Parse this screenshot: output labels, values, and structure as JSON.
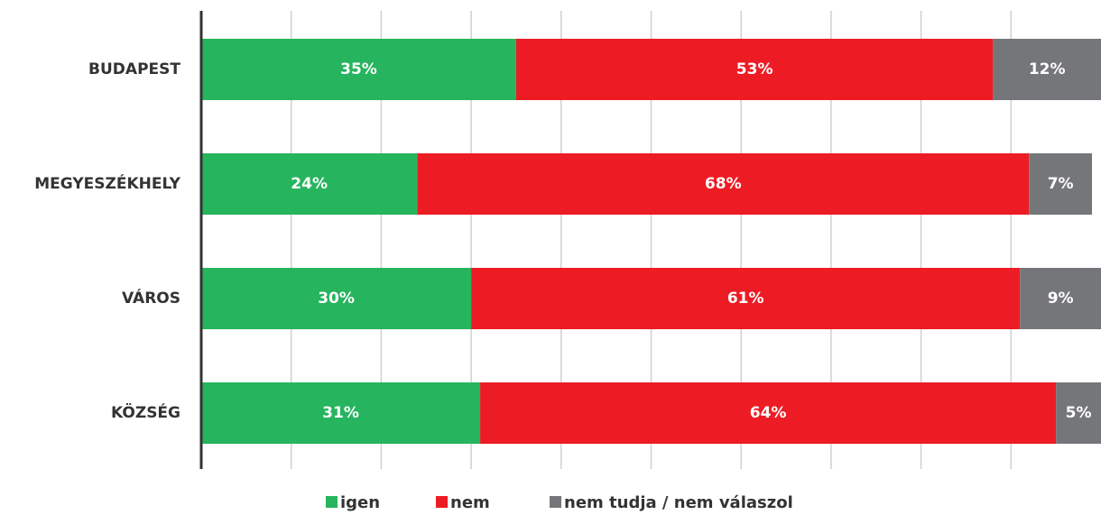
{
  "chart_data": {
    "type": "stacked-bar-horizontal",
    "categories": [
      "BUDAPEST",
      "MEGYESZÉKHELY",
      "VÁROS",
      "KÖZSÉG"
    ],
    "series": [
      {
        "name": "igen",
        "color": "#27b45e",
        "values": [
          35,
          24,
          30,
          31
        ],
        "value_labels": [
          "35%",
          "24%",
          "30%",
          "31%"
        ]
      },
      {
        "name": "nem",
        "color": "#ed1c24",
        "values": [
          53,
          68,
          61,
          64
        ],
        "value_labels": [
          "53%",
          "68%",
          "61%",
          "64%"
        ]
      },
      {
        "name": "nem tudja / nem válaszol",
        "color": "#757679",
        "values": [
          12,
          7,
          9,
          5
        ],
        "value_labels": [
          "12%",
          "7%",
          "9%",
          "5%"
        ]
      }
    ],
    "xlim": [
      0,
      100
    ],
    "xticks": [
      10,
      20,
      30,
      40,
      50,
      60,
      70,
      80,
      90
    ],
    "grid": true,
    "legend": "bottom"
  }
}
